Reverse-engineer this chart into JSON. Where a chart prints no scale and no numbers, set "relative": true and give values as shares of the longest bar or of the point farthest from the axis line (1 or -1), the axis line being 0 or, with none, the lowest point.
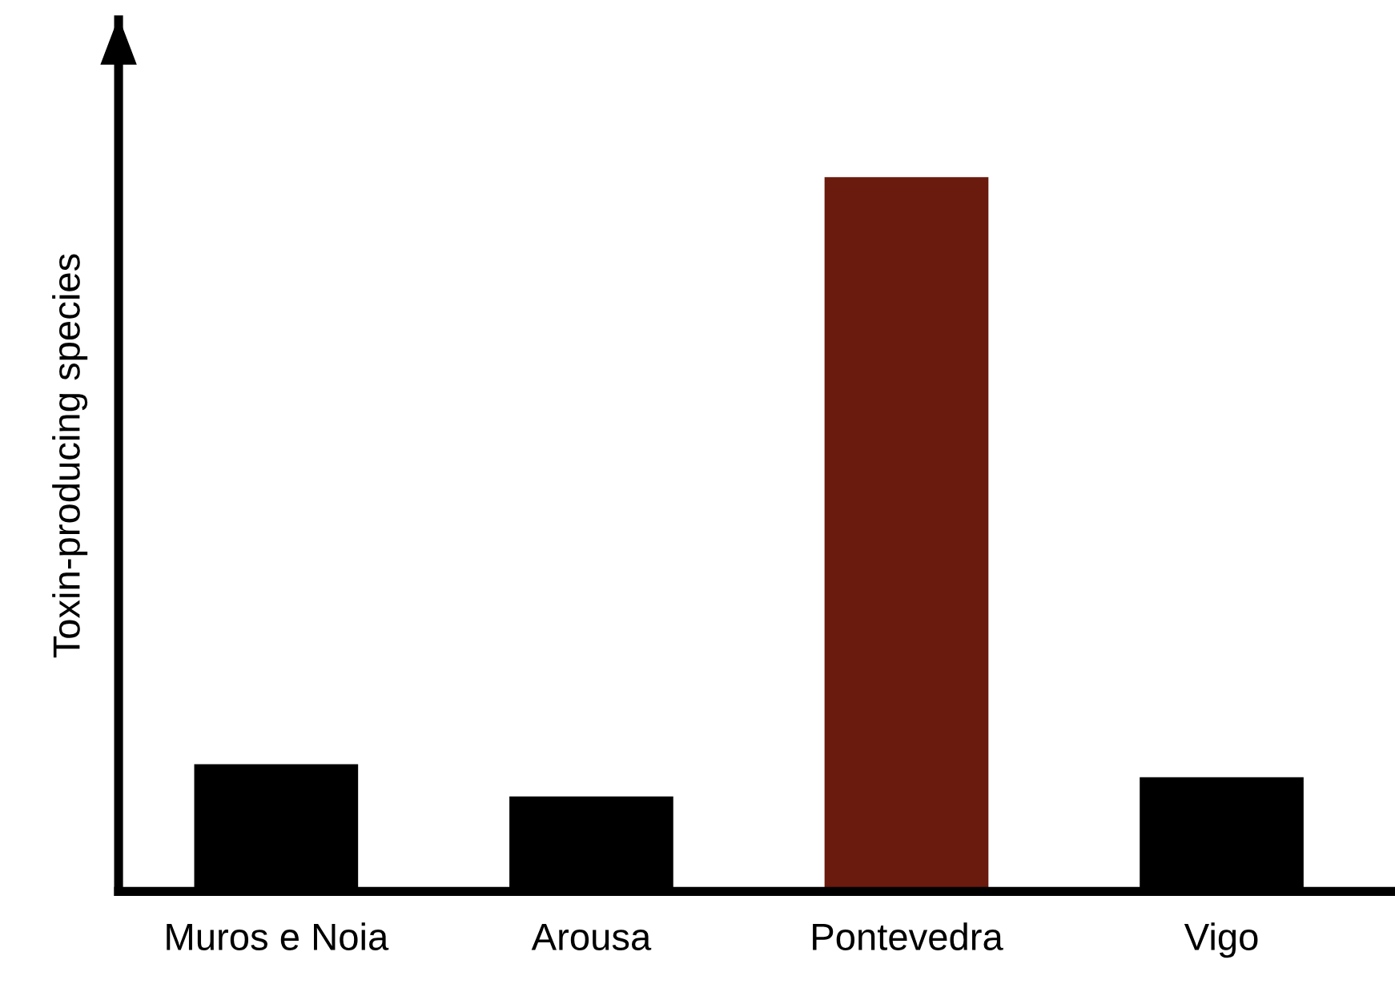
{
  "chart_data": {
    "type": "bar",
    "ylabel": "Toxin-producing species",
    "relative": true,
    "categories": [
      "Muros e Noia",
      "Arousa",
      "Pontevedra",
      "Vigo"
    ],
    "values": [
      0.178,
      0.133,
      1,
      0.16
    ],
    "colors": [
      "#000000",
      "#000000",
      "#6b1a0e",
      "#000000"
    ]
  }
}
